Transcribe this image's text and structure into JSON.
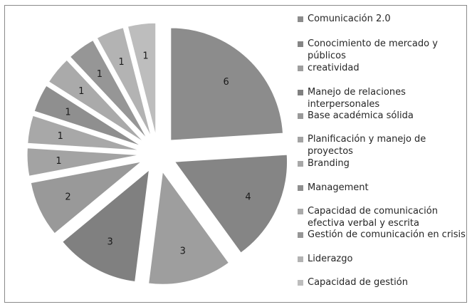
{
  "chart_data": {
    "type": "pie",
    "categories": [
      "Comunicación 2.0",
      "Conocimiento de mercado y públicos",
      "creatividad",
      "Manejo de relaciones interpersonales",
      "Base académica sólida",
      "Planificación y manejo de proyectos",
      "Branding",
      "Management",
      "Capacidad de comunicación efectiva verbal y escrita",
      "Gestión de comunicación en crisis",
      "Liderazgo",
      "Capacidad de gestión"
    ],
    "values": [
      6,
      4,
      3,
      3,
      2,
      1,
      1,
      1,
      1,
      1,
      1,
      1
    ],
    "data_labels": [
      "6",
      "4",
      "3",
      "3",
      "2",
      "1",
      "1",
      "1",
      "1",
      "1",
      "1",
      "1"
    ],
    "colors": [
      "#8c8c8c",
      "#858585",
      "#9e9e9e",
      "#808080",
      "#999999",
      "#a3a3a3",
      "#a8a8a8",
      "#8f8f8f",
      "#aaaaaa",
      "#969696",
      "#b3b3b3",
      "#bdbdbd"
    ],
    "exploded": true,
    "legend_position": "right"
  }
}
